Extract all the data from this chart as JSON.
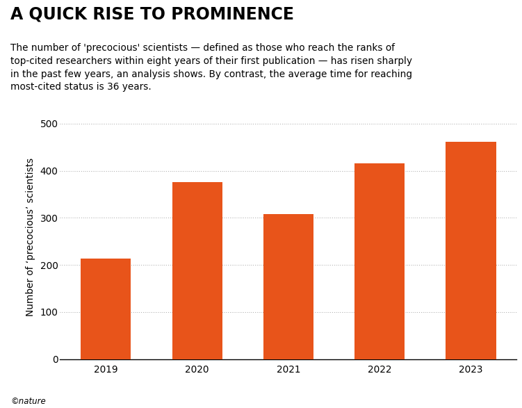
{
  "categories": [
    "2019",
    "2020",
    "2021",
    "2022",
    "2023"
  ],
  "values": [
    213,
    376,
    308,
    415,
    462
  ],
  "bar_color": "#E8541A",
  "title": "A QUICK RISE TO PROMINENCE",
  "subtitle": "The number of 'precocious' scientists — defined as those who reach the ranks of\ntop-cited researchers within eight years of their first publication — has risen sharply\nin the past few years, an analysis shows. By contrast, the average time for reaching\nmost-cited status is 36 years.",
  "ylabel": "Number of ‘precocious’ scientists",
  "xlabel": "",
  "ylim": [
    0,
    520
  ],
  "yticks": [
    0,
    100,
    200,
    300,
    400,
    500
  ],
  "background_color": "#ffffff",
  "grid_color": "#555555",
  "title_fontsize": 17,
  "subtitle_fontsize": 9.8,
  "ylabel_fontsize": 9.8,
  "tick_fontsize": 9.8,
  "footer": "©nature"
}
